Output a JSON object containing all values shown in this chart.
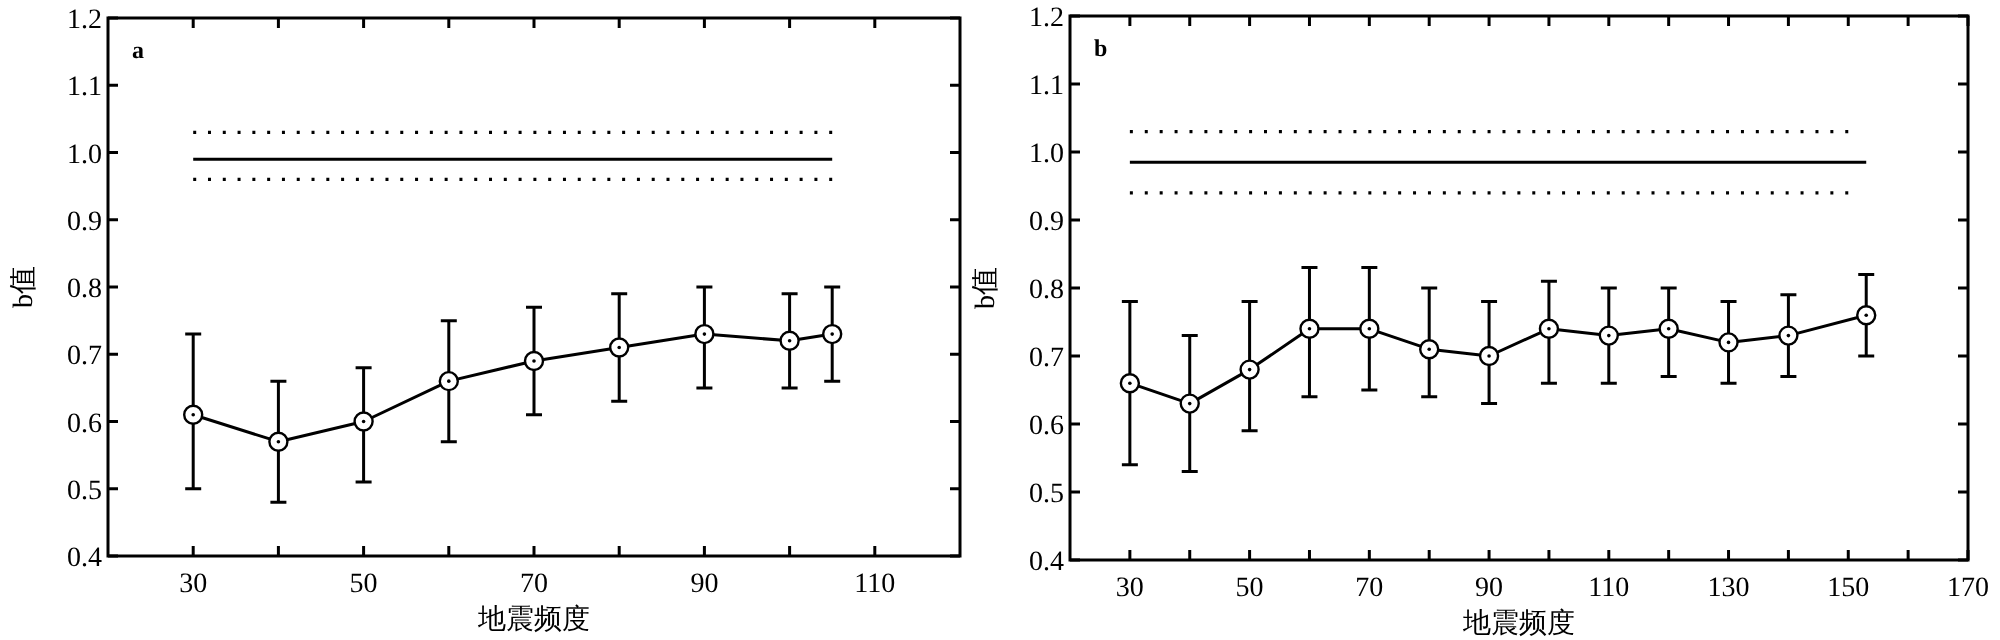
{
  "chart_data": [
    {
      "type": "line",
      "xlabel": "地震频度",
      "ylabel": "b值",
      "annotations": [
        "a"
      ],
      "grid": false,
      "xlim": [
        20,
        120
      ],
      "ylim": [
        0.4,
        1.2
      ],
      "xticks": [
        30,
        {
          "value": 40,
          "label": null
        },
        50,
        {
          "value": 60,
          "label": null
        },
        70,
        {
          "value": 80,
          "label": null
        },
        90,
        {
          "value": 100,
          "label": null
        },
        110
      ],
      "yticks": [
        0.4,
        0.5,
        0.6,
        0.7,
        0.8,
        0.9,
        {
          "value": 1,
          "label": "1.0"
        },
        1.1,
        1.2
      ],
      "series": [
        {
          "type": "line",
          "color": "#000000",
          "marker": "circle",
          "line_style": "solid",
          "x": [
            30,
            40,
            50,
            60,
            70,
            80,
            90,
            100,
            105
          ],
          "values": [
            0.61,
            0.57,
            0.6,
            0.66,
            0.69,
            0.71,
            0.73,
            0.72,
            0.73
          ],
          "errors": [
            [
              0.5,
              0.73
            ],
            [
              0.48,
              0.66
            ],
            [
              0.51,
              0.68
            ],
            [
              0.57,
              0.75
            ],
            [
              0.61,
              0.77
            ],
            [
              0.63,
              0.79
            ],
            [
              0.65,
              0.8
            ],
            [
              0.65,
              0.79
            ],
            [
              0.66,
              0.8
            ]
          ]
        },
        {
          "type": "line",
          "color": "#000000",
          "marker": "none",
          "line_style": "solid",
          "x": [
            30,
            105
          ],
          "values": [
            0.99,
            0.99
          ]
        },
        {
          "type": "line",
          "color": "#000000",
          "marker": "none",
          "line_style": "dotted",
          "x": [
            30,
            105
          ],
          "values": [
            1.03,
            1.03
          ]
        },
        {
          "type": "line",
          "color": "#000000",
          "marker": "none",
          "line_style": "dotted",
          "x": [
            30,
            105
          ],
          "values": [
            0.96,
            0.96
          ]
        }
      ]
    },
    {
      "type": "line",
      "xlabel": "地震频度",
      "ylabel": "b值",
      "annotations": [
        "b"
      ],
      "grid": false,
      "xlim": [
        20,
        170
      ],
      "ylim": [
        0.4,
        1.2
      ],
      "xticks": [
        30,
        {
          "value": 40,
          "label": null
        },
        50,
        {
          "value": 60,
          "label": null
        },
        70,
        {
          "value": 80,
          "label": null
        },
        90,
        {
          "value": 100,
          "label": null
        },
        110,
        {
          "value": 120,
          "label": null
        },
        130,
        {
          "value": 140,
          "label": null
        },
        150,
        {
          "value": 160,
          "label": null
        },
        170
      ],
      "yticks": [
        0.4,
        0.5,
        0.6,
        0.7,
        0.8,
        0.9,
        {
          "value": 1,
          "label": "1.0"
        },
        1.1,
        1.2
      ],
      "series": [
        {
          "type": "line",
          "color": "#000000",
          "marker": "circle",
          "line_style": "solid",
          "x": [
            30,
            40,
            50,
            60,
            70,
            80,
            90,
            100,
            110,
            120,
            130,
            140,
            153
          ],
          "values": [
            0.66,
            0.63,
            0.68,
            0.74,
            0.74,
            0.71,
            0.7,
            0.74,
            0.73,
            0.74,
            0.72,
            0.73,
            0.76
          ],
          "errors": [
            [
              0.54,
              0.78
            ],
            [
              0.53,
              0.73
            ],
            [
              0.59,
              0.78
            ],
            [
              0.64,
              0.83
            ],
            [
              0.65,
              0.83
            ],
            [
              0.64,
              0.8
            ],
            [
              0.63,
              0.78
            ],
            [
              0.66,
              0.81
            ],
            [
              0.66,
              0.8
            ],
            [
              0.67,
              0.8
            ],
            [
              0.66,
              0.78
            ],
            [
              0.67,
              0.79
            ],
            [
              0.7,
              0.82
            ]
          ]
        },
        {
          "type": "line",
          "color": "#000000",
          "marker": "none",
          "line_style": "solid",
          "x": [
            30,
            153
          ],
          "values": [
            0.985,
            0.985
          ]
        },
        {
          "type": "line",
          "color": "#000000",
          "marker": "none",
          "line_style": "dotted",
          "x": [
            30,
            150
          ],
          "values": [
            1.03,
            1.03
          ]
        },
        {
          "type": "line",
          "color": "#000000",
          "marker": "none",
          "line_style": "dotted",
          "x": [
            30,
            150
          ],
          "values": [
            0.94,
            0.94
          ]
        }
      ]
    }
  ]
}
